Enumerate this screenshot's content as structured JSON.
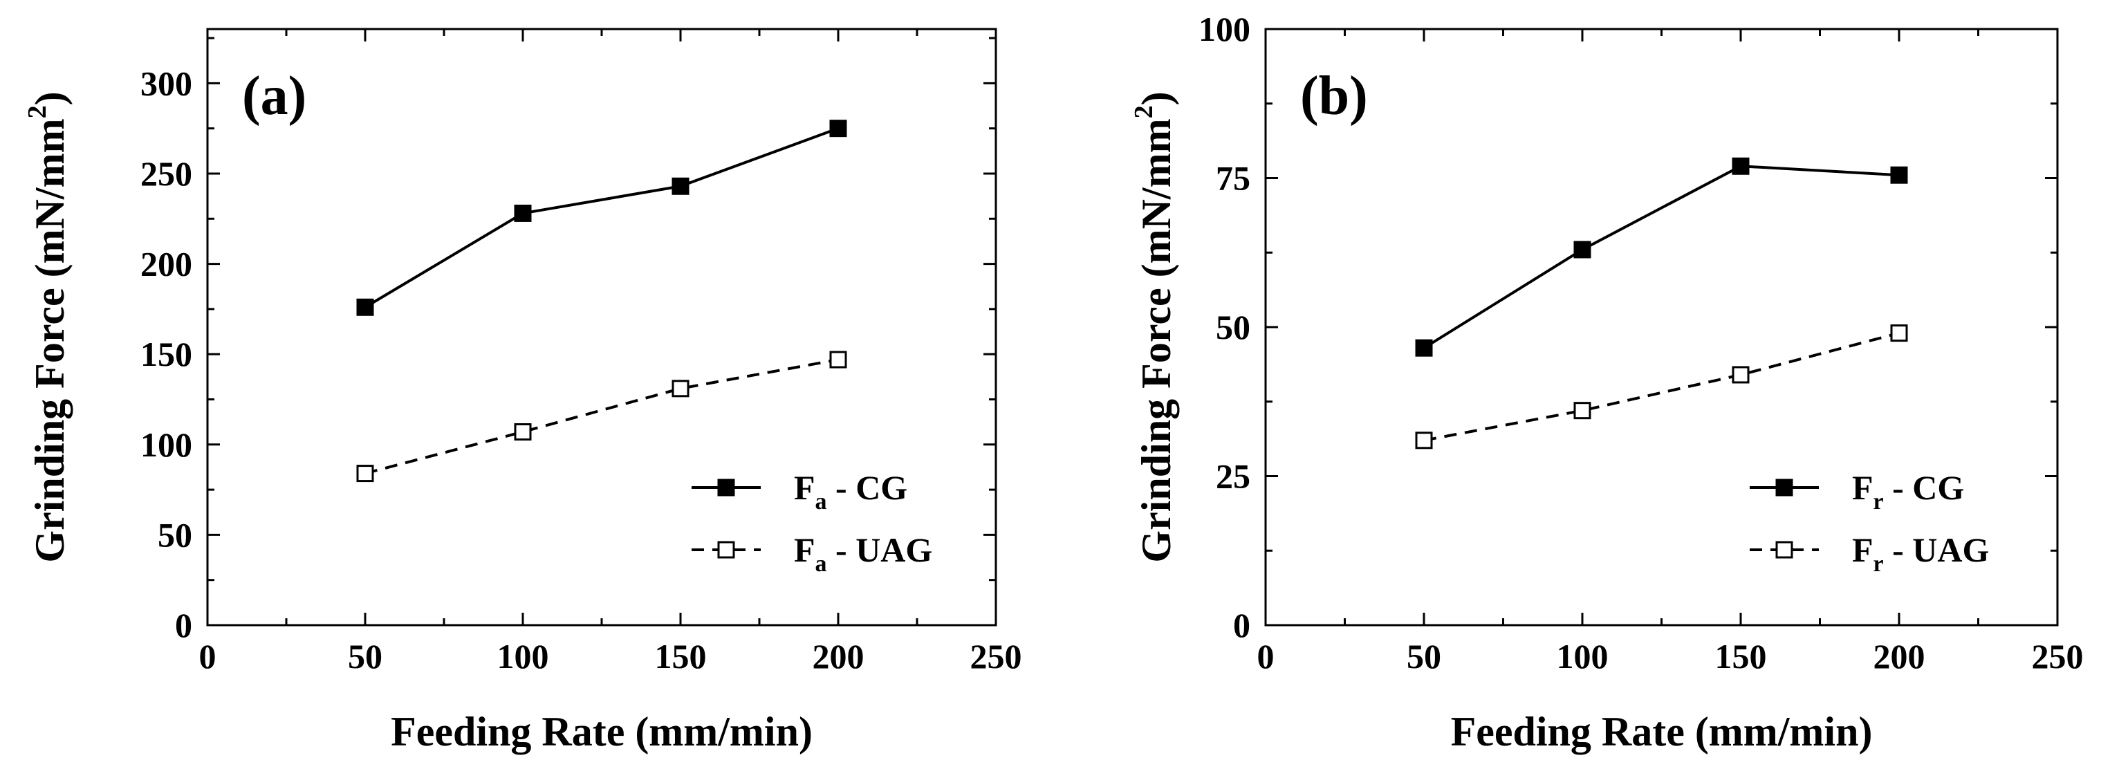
{
  "chart_data": [
    {
      "type": "line",
      "panel_label": "(a)",
      "xlabel": "Feeding Rate (mm/min)",
      "ylabel_base": "Grinding Force (mN/mm",
      "ylabel_sup": "2",
      "ylabel_end": ")",
      "xlim": [
        0,
        250
      ],
      "ylim": [
        0,
        330
      ],
      "xticks": [
        0,
        50,
        100,
        150,
        200,
        250
      ],
      "yticks": [
        0,
        50,
        100,
        150,
        200,
        250,
        300
      ],
      "x": [
        50,
        100,
        150,
        200
      ],
      "series": [
        {
          "name": "Fa - CG",
          "legend_symbol": "F",
          "legend_sub": "a",
          "legend_suffix": " - CG",
          "values": [
            176,
            228,
            243,
            275
          ],
          "marker": "filled-square",
          "line": "solid"
        },
        {
          "name": "Fa - UAG",
          "legend_symbol": "F",
          "legend_sub": "a",
          "legend_suffix": " - UAG",
          "values": [
            84,
            107,
            131,
            147
          ],
          "marker": "open-square",
          "line": "dashed"
        }
      ],
      "legend_position": "bottom-right"
    },
    {
      "type": "line",
      "panel_label": "(b)",
      "xlabel": "Feeding Rate (mm/min)",
      "ylabel_base": "Grinding Force (mN/mm",
      "ylabel_sup": "2",
      "ylabel_end": ")",
      "xlim": [
        0,
        250
      ],
      "ylim": [
        0,
        100
      ],
      "xticks": [
        0,
        50,
        100,
        150,
        200,
        250
      ],
      "yticks": [
        0,
        25,
        50,
        75,
        100
      ],
      "x": [
        50,
        100,
        150,
        200
      ],
      "series": [
        {
          "name": "Fr - CG",
          "legend_symbol": "F",
          "legend_sub": "r",
          "legend_suffix": " - CG",
          "values": [
            46.5,
            63,
            77,
            75.5
          ],
          "marker": "filled-square",
          "line": "solid"
        },
        {
          "name": "Fr - UAG",
          "legend_symbol": "F",
          "legend_sub": "r",
          "legend_suffix": " - UAG",
          "values": [
            31,
            36,
            42,
            49
          ],
          "marker": "open-square",
          "line": "dashed"
        }
      ],
      "legend_position": "bottom-right"
    }
  ],
  "colors": {
    "ink": "#000000",
    "background": "#ffffff"
  }
}
